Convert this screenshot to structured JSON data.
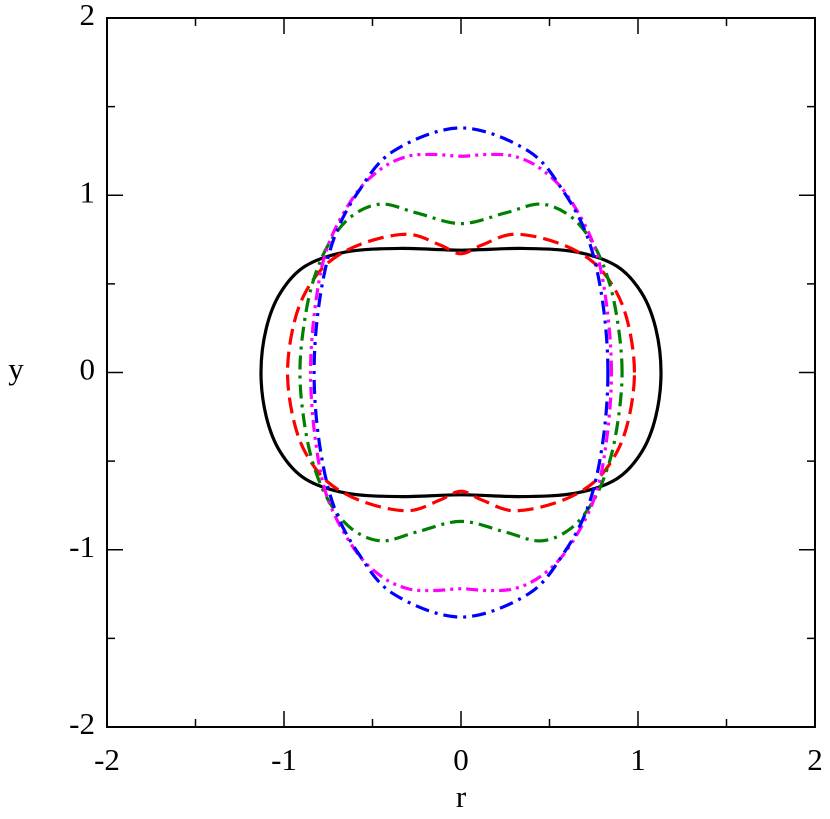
{
  "chart_data": {
    "type": "closed-curves",
    "x_label": "r",
    "y_label": "y",
    "xlim": [
      -2,
      2
    ],
    "ylim": [
      -2,
      2
    ],
    "xticks": [
      -2,
      -1,
      0,
      1,
      2
    ],
    "yticks": [
      -2,
      -1,
      0,
      1,
      2
    ],
    "xminorticks": [
      -1.5,
      -0.5,
      0.5,
      1.5
    ],
    "yminorticks": [
      -1.5,
      -0.5,
      0.5,
      1.5
    ],
    "series": [
      {
        "color": "#000000",
        "dash": "solid",
        "x": [
          1.13,
          1.1,
          1.02,
          0.88,
          0.65,
          0.35,
          0,
          -0.35,
          -0.65,
          -0.88,
          -1.02,
          -1.1,
          -1.13,
          -1.1,
          -1.02,
          -0.88,
          -0.65,
          -0.35,
          0,
          0.35,
          0.65,
          0.88,
          1.02,
          1.1
        ],
        "values": [
          0,
          0.25,
          0.45,
          0.6,
          0.68,
          0.7,
          0.69,
          0.7,
          0.68,
          0.6,
          0.45,
          0.25,
          0,
          -0.25,
          -0.45,
          -0.6,
          -0.68,
          -0.7,
          -0.69,
          -0.7,
          -0.68,
          -0.6,
          -0.45,
          -0.25
        ]
      },
      {
        "color": "#ff0000",
        "dash": "dashed",
        "x": [
          0.98,
          0.95,
          0.88,
          0.75,
          0.55,
          0.3,
          0.12,
          0,
          -0.12,
          -0.3,
          -0.55,
          -0.75,
          -0.88,
          -0.95,
          -0.98,
          -0.95,
          -0.88,
          -0.75,
          -0.55,
          -0.3,
          -0.12,
          0,
          0.12,
          0.3,
          0.55,
          0.75,
          0.88,
          0.95
        ],
        "values": [
          0,
          0.25,
          0.45,
          0.62,
          0.73,
          0.78,
          0.72,
          0.67,
          0.72,
          0.78,
          0.73,
          0.62,
          0.45,
          0.25,
          0,
          -0.25,
          -0.45,
          -0.62,
          -0.73,
          -0.78,
          -0.72,
          -0.67,
          -0.72,
          -0.78,
          -0.73,
          -0.62,
          -0.45,
          -0.25
        ]
      },
      {
        "color": "#008000",
        "dash": "dash-dot",
        "x": [
          0.91,
          0.89,
          0.84,
          0.75,
          0.62,
          0.45,
          0.25,
          0,
          -0.25,
          -0.45,
          -0.62,
          -0.75,
          -0.84,
          -0.89,
          -0.91,
          -0.89,
          -0.84,
          -0.75,
          -0.62,
          -0.45,
          -0.25,
          0,
          0.25,
          0.45,
          0.62,
          0.75,
          0.84,
          0.89
        ],
        "values": [
          0,
          0.25,
          0.5,
          0.72,
          0.88,
          0.95,
          0.9,
          0.84,
          0.9,
          0.95,
          0.88,
          0.72,
          0.5,
          0.25,
          0,
          -0.25,
          -0.5,
          -0.72,
          -0.88,
          -0.95,
          -0.9,
          -0.84,
          -0.9,
          -0.95,
          -0.88,
          -0.72,
          -0.5,
          -0.25
        ]
      },
      {
        "color": "#ff00ff",
        "dash": "dash-dot-dot",
        "x": [
          0.85,
          0.82,
          0.75,
          0.6,
          0.45,
          0.3,
          0.15,
          0,
          -0.15,
          -0.3,
          -0.45,
          -0.6,
          -0.75,
          -0.82,
          -0.85,
          -0.82,
          -0.75,
          -0.6,
          -0.45,
          -0.3,
          -0.15,
          0,
          0.15,
          0.3,
          0.45,
          0.6,
          0.75,
          0.82
        ],
        "values": [
          0,
          0.4,
          0.72,
          1.0,
          1.15,
          1.22,
          1.23,
          1.22,
          1.23,
          1.22,
          1.15,
          1.0,
          0.72,
          0.4,
          0,
          -0.4,
          -0.72,
          -1.0,
          -1.15,
          -1.22,
          -1.23,
          -1.22,
          -1.23,
          -1.22,
          -1.15,
          -1.0,
          -0.72,
          -0.4
        ]
      },
      {
        "color": "#0000ff",
        "dash": "dash-dot",
        "x": [
          0.83,
          0.8,
          0.72,
          0.58,
          0.38,
          0,
          -0.38,
          -0.58,
          -0.72,
          -0.8,
          -0.83,
          -0.8,
          -0.72,
          -0.58,
          -0.38,
          0,
          0.38,
          0.58,
          0.72,
          0.8
        ],
        "values": [
          0,
          0.4,
          0.75,
          1.02,
          1.25,
          1.38,
          1.25,
          1.02,
          0.75,
          0.4,
          0,
          -0.4,
          -0.75,
          -1.02,
          -1.25,
          -1.38,
          -1.25,
          -1.02,
          -0.75,
          -0.4
        ]
      }
    ]
  }
}
